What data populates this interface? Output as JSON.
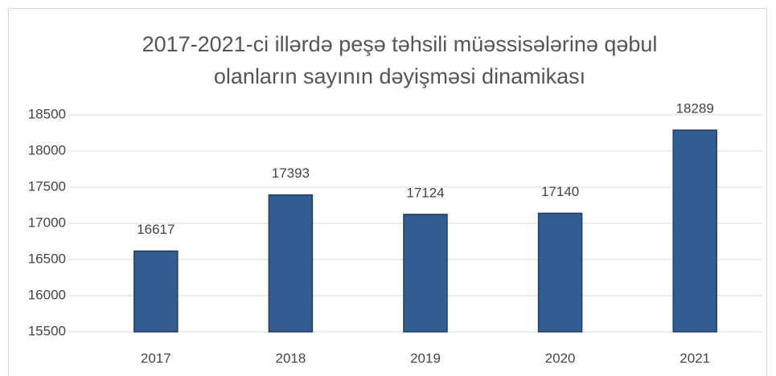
{
  "chart_data": {
    "type": "bar",
    "title": [
      "2017-2021-ci illərdə peşə təhsili müəssisələrinə qəbul",
      "olanların sayının dəyişməsi dinamikası"
    ],
    "categories": [
      "2017",
      "2018",
      "2019",
      "2020",
      "2021"
    ],
    "values": [
      16617,
      17393,
      17124,
      17140,
      18289
    ],
    "color": "#335d91",
    "ylim": [
      15500,
      18500
    ],
    "yticks": [
      15500,
      16000,
      16500,
      17000,
      17500,
      18000,
      18500
    ],
    "grid": true
  }
}
